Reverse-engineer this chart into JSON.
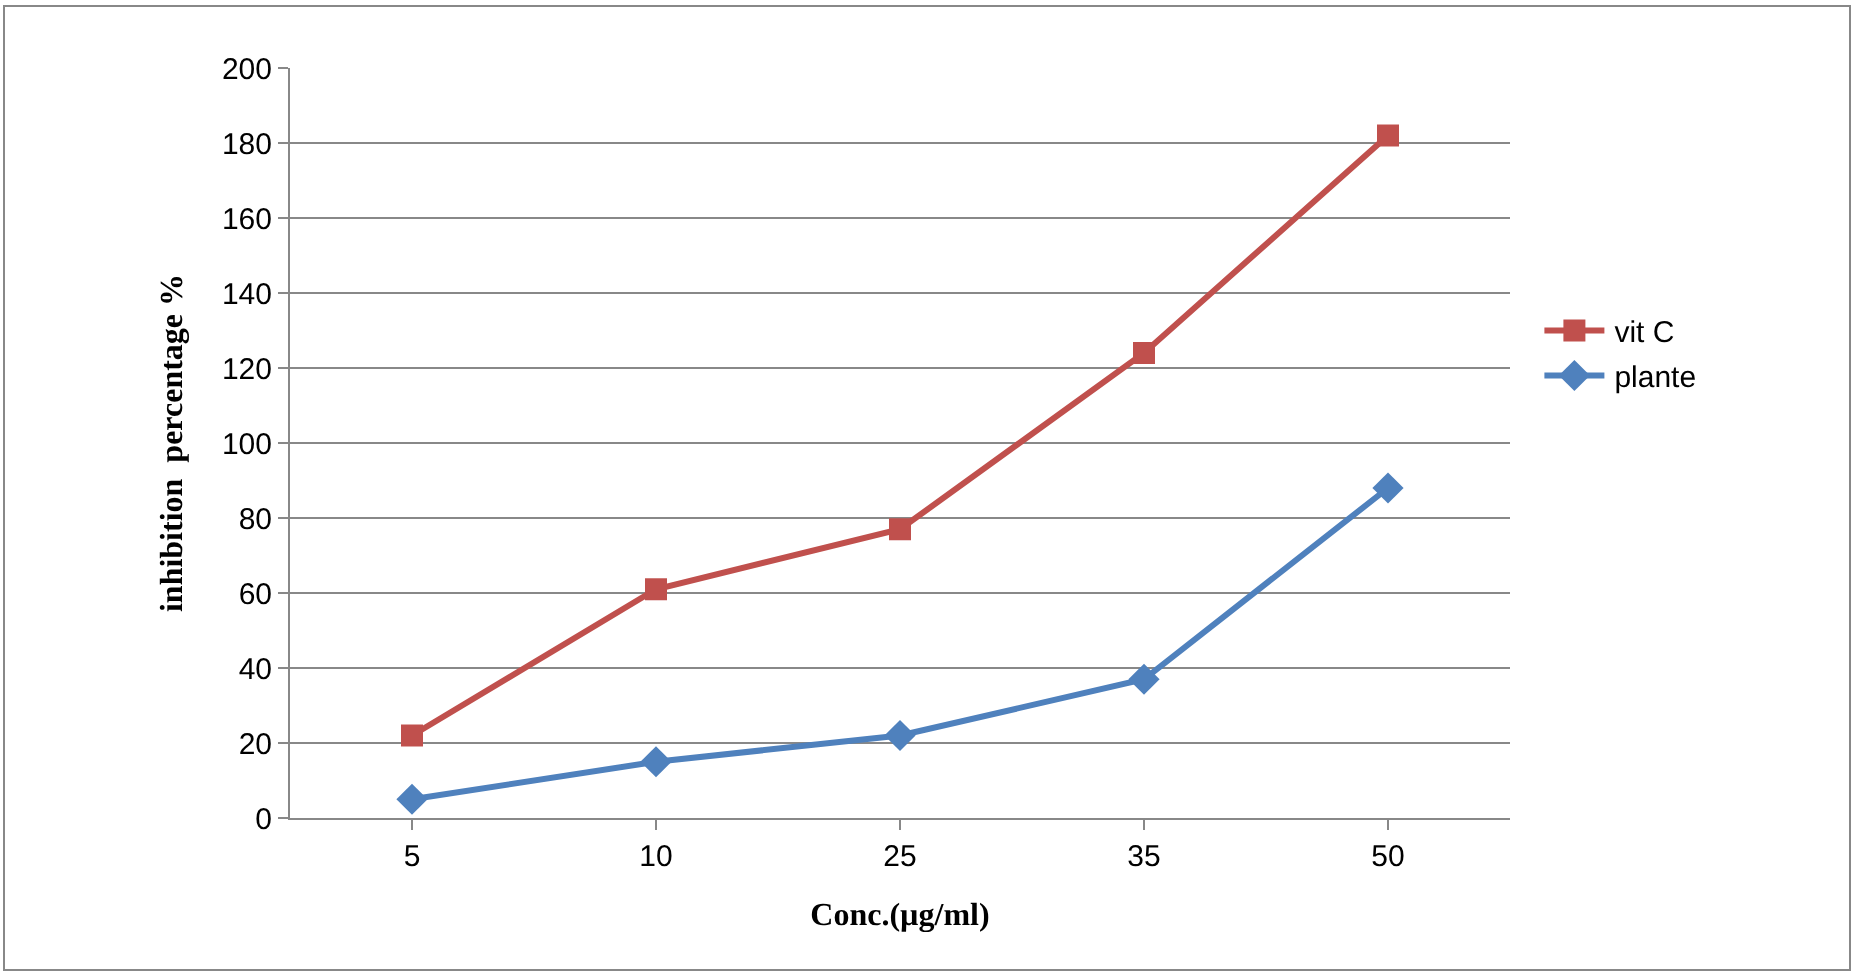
{
  "chart_data": {
    "type": "line",
    "xlabel": "Conc.(µg/ml)",
    "ylabel": "inhibition  percentage %",
    "categories": [
      "5",
      "10",
      "25",
      "35",
      "50"
    ],
    "series": [
      {
        "name": "vit C",
        "color": "#c0504d",
        "marker": "square",
        "values": [
          22,
          61,
          77,
          124,
          182
        ]
      },
      {
        "name": "plante",
        "color": "#4f81bd",
        "marker": "diamond",
        "values": [
          5,
          15,
          22,
          37,
          88
        ]
      }
    ],
    "ylim": [
      0,
      200
    ],
    "yticks": [
      0,
      20,
      40,
      60,
      80,
      100,
      120,
      140,
      160,
      180,
      200
    ],
    "grid": "y",
    "legend": "right",
    "line_style": "solid"
  }
}
